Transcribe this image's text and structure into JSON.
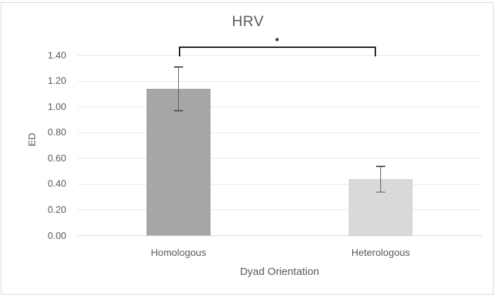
{
  "chart_data": {
    "type": "bar",
    "title": "HRV",
    "xlabel": "Dyad Orientation",
    "ylabel": "ED",
    "categories": [
      "Homologous",
      "Heterologous"
    ],
    "values": [
      1.14,
      0.44
    ],
    "error_low": [
      0.97,
      0.34
    ],
    "error_high": [
      1.31,
      0.54
    ],
    "bar_colors": [
      "#a6a6a6",
      "#d9d9d9"
    ],
    "ylim": [
      0,
      1.4
    ],
    "ytick_step": 0.2,
    "ytick_labels": [
      "0.00",
      "0.20",
      "0.40",
      "0.60",
      "0.80",
      "1.00",
      "1.20",
      "1.40"
    ],
    "grid": true,
    "legend": false,
    "significance": {
      "from": "Homologous",
      "to": "Heterologous",
      "label": "*",
      "y": 1.47
    },
    "colors": {
      "text": "#595959",
      "gridline": "#e8e8e8",
      "axis_line": "#d9d9d9",
      "error_bar": "#595959",
      "bracket": "#1a1a1a",
      "border": "#d9d9d9",
      "background": "#ffffff"
    }
  }
}
